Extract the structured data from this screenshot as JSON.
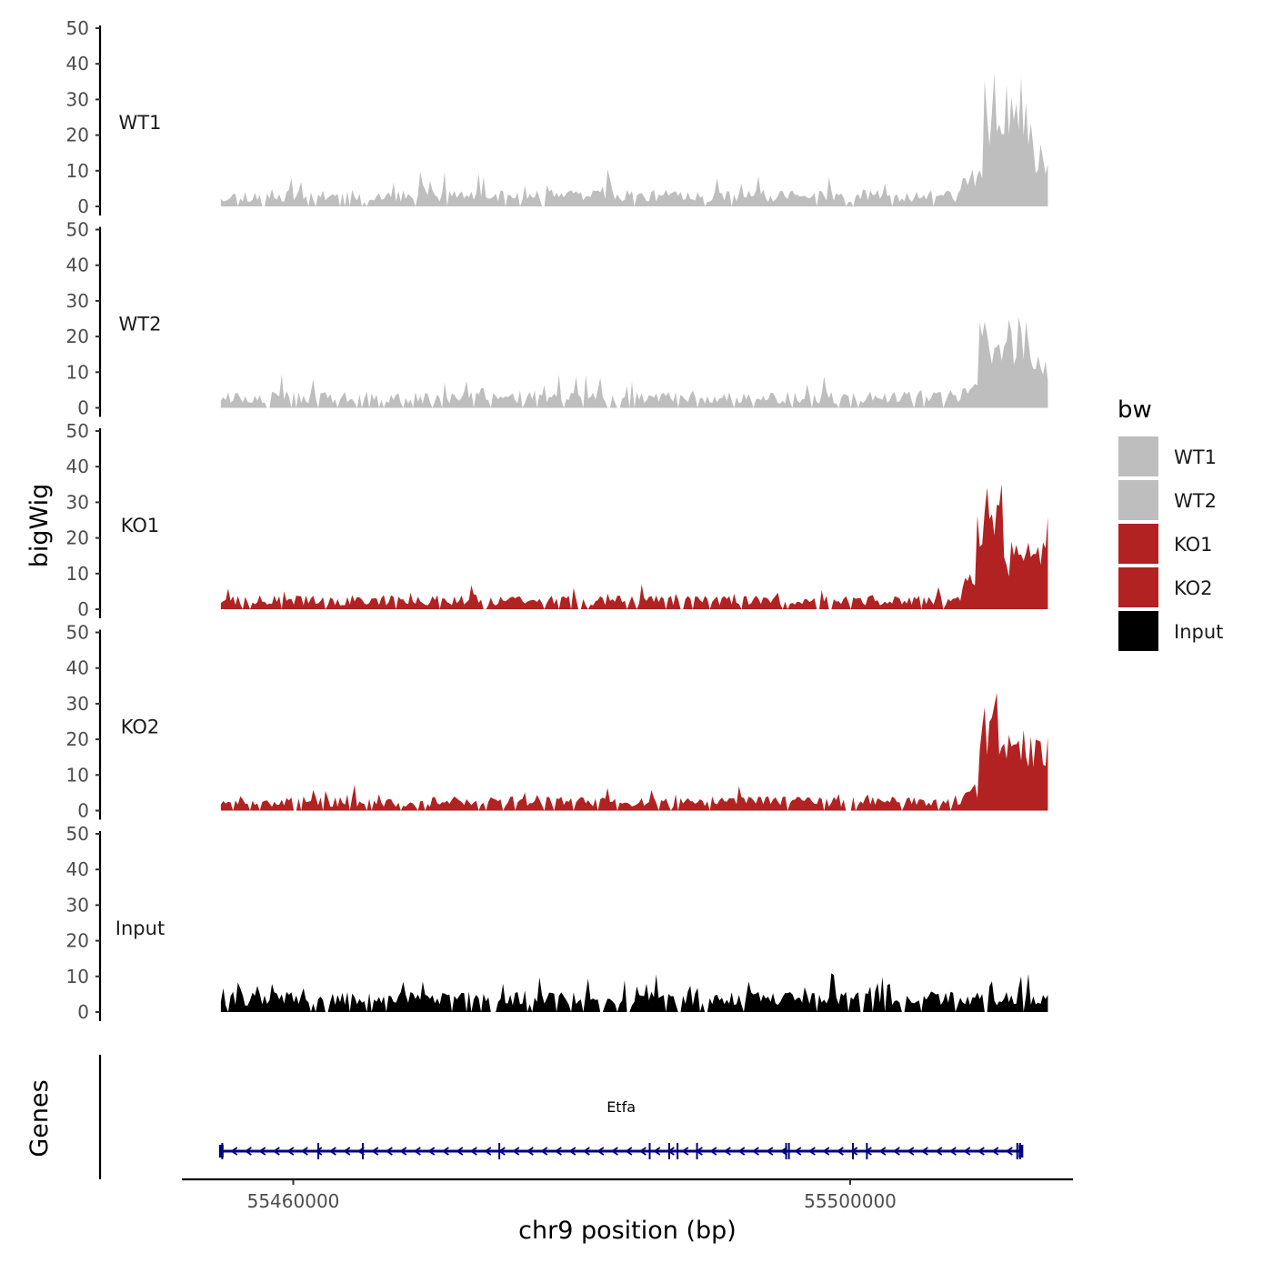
{
  "chart_data": {
    "type": "area",
    "title": "",
    "xlabel": "chr9 position (bp)",
    "ylabel": "bigWig",
    "genes_label": "Genes",
    "xlim": [
      55452000,
      55516000
    ],
    "data_range": [
      55454800,
      55514200
    ],
    "ylim": [
      0,
      50
    ],
    "yticks": [
      "0",
      "10",
      "20",
      "30",
      "40",
      "50"
    ],
    "xticks": [
      {
        "value": 55460000,
        "label": "55460000"
      },
      {
        "value": 55500000,
        "label": "55500000"
      }
    ],
    "series": [
      {
        "name": "WT1",
        "color": "#bebebe",
        "baseline": 3,
        "noise": 3.5,
        "spike": 6,
        "seed": 11,
        "peak": [
          [
            55508000,
            55509500,
            8
          ],
          [
            55509500,
            55511200,
            30
          ],
          [
            55511200,
            55513000,
            28
          ],
          [
            55513000,
            55514200,
            14
          ]
        ]
      },
      {
        "name": "WT2",
        "color": "#bebebe",
        "baseline": 3,
        "noise": 3.5,
        "spike": 5,
        "seed": 23,
        "peak": [
          [
            55508000,
            55509200,
            6
          ],
          [
            55509200,
            55511000,
            19
          ],
          [
            55511000,
            55513000,
            20
          ],
          [
            55513000,
            55514200,
            12
          ]
        ]
      },
      {
        "name": "KO1",
        "color": "#b22222",
        "baseline": 2.5,
        "noise": 3,
        "spike": 4,
        "seed": 37,
        "peak": [
          [
            55508000,
            55509000,
            8
          ],
          [
            55509000,
            55511000,
            30
          ],
          [
            55511000,
            55512300,
            16
          ],
          [
            55512300,
            55514200,
            22
          ]
        ]
      },
      {
        "name": "KO2",
        "color": "#b22222",
        "baseline": 2.5,
        "noise": 3,
        "spike": 4,
        "seed": 51,
        "peak": [
          [
            55508000,
            55509300,
            6
          ],
          [
            55509300,
            55511200,
            26
          ],
          [
            55511200,
            55513000,
            18
          ],
          [
            55513000,
            55514200,
            16
          ]
        ]
      },
      {
        "name": "Input",
        "color": "#000000",
        "baseline": 4.5,
        "noise": 4,
        "spike": 6,
        "seed": 67,
        "peak": []
      }
    ],
    "legend": {
      "title": "bw",
      "position": "right",
      "items": [
        {
          "label": "WT1",
          "color": "#bebebe"
        },
        {
          "label": "WT2",
          "color": "#bebebe"
        },
        {
          "label": "KO1",
          "color": "#b22222"
        },
        {
          "label": "KO2",
          "color": "#b22222"
        },
        {
          "label": "Input",
          "color": "#000000"
        }
      ]
    },
    "gene": {
      "name": "Etfa",
      "strand": "-",
      "start": 55454800,
      "end": 55512300,
      "color": "#00007f",
      "exons": [
        55454900,
        55461800,
        55465000,
        55474800,
        55485600,
        55487000,
        55487600,
        55489000,
        55495400,
        55495600,
        55500200,
        55501200,
        55512000,
        55512200
      ]
    }
  }
}
